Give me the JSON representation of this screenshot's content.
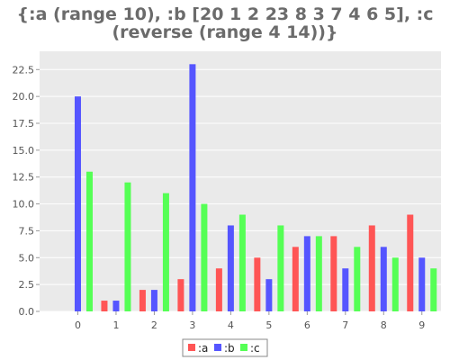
{
  "chart_data": {
    "type": "bar",
    "title_lines": [
      "{:a (range 10), :b [20 1 2 23 8 3 7 4 6 5], :c",
      "(reverse (range 4 14))}"
    ],
    "categories": [
      "0",
      "1",
      "2",
      "3",
      "4",
      "5",
      "6",
      "7",
      "8",
      "9"
    ],
    "series": [
      {
        "name": ":a",
        "color": "#ff5555",
        "values": [
          0,
          1,
          2,
          3,
          4,
          5,
          6,
          7,
          8,
          9
        ]
      },
      {
        "name": ":b",
        "color": "#5555ff",
        "values": [
          20,
          1,
          2,
          23,
          8,
          3,
          7,
          4,
          6,
          5
        ]
      },
      {
        "name": ":c",
        "color": "#55ff55",
        "values": [
          13,
          12,
          11,
          10,
          9,
          8,
          7,
          6,
          5,
          4
        ]
      }
    ],
    "y_ticks": [
      "0.0",
      "2.5",
      "5.0",
      "7.5",
      "10.0",
      "12.5",
      "15.0",
      "17.5",
      "20.0",
      "22.5"
    ],
    "ylim": [
      0,
      24.2
    ],
    "xlabel": "",
    "ylabel": "",
    "grid": true,
    "legend_position": "bottom-center",
    "colors": {
      "plot_background": "#eaeaea",
      "grid": "#ffffff",
      "title": "#6b6b6b"
    }
  }
}
